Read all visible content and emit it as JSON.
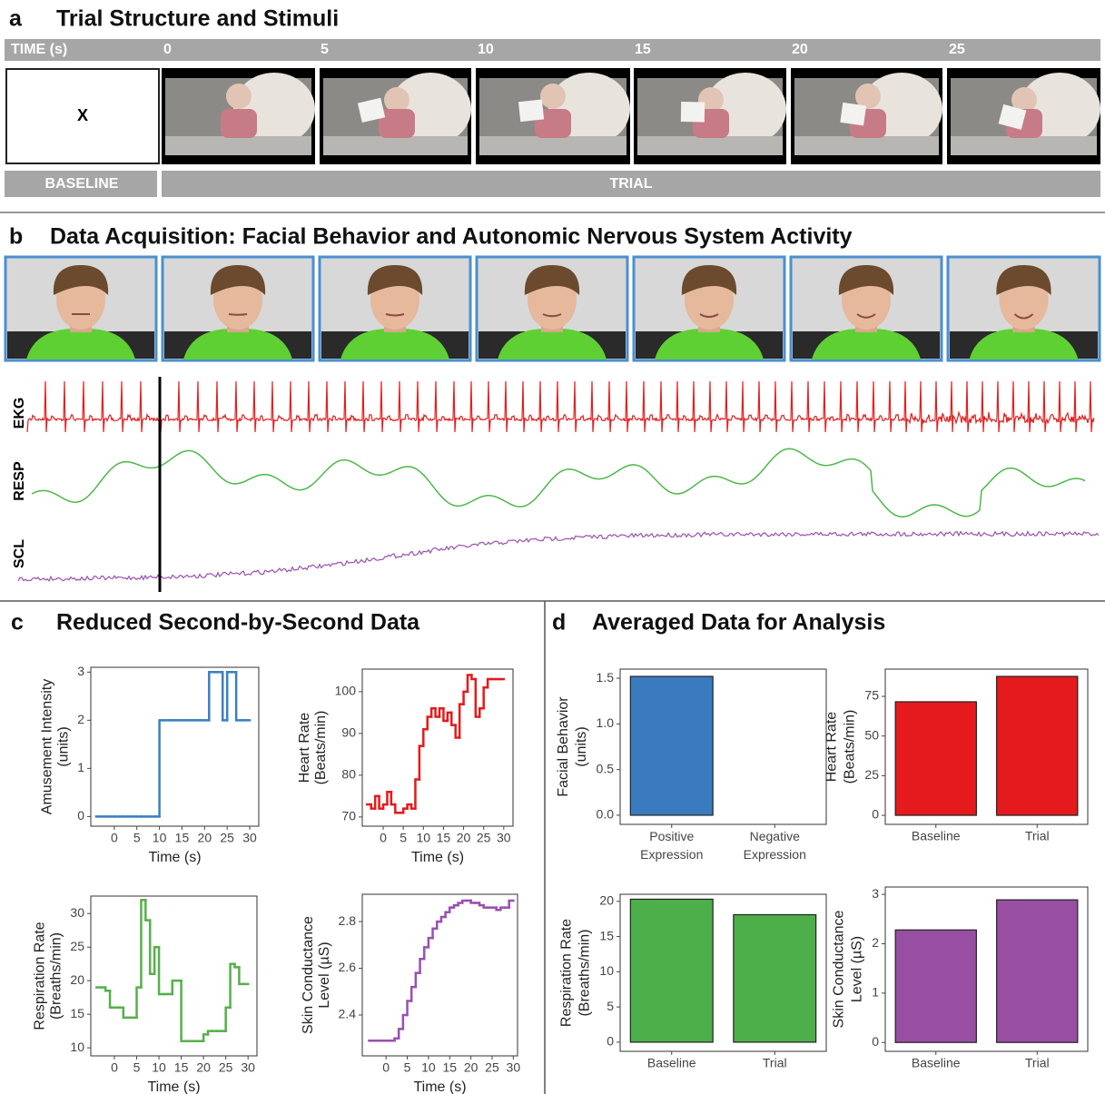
{
  "panel_a": {
    "label": "a",
    "title": "Trial Structure and Stimuli",
    "time_label": "TIME (s)",
    "time_ticks": [
      0,
      5,
      10,
      15,
      20,
      25
    ],
    "fixation": "X",
    "baseline": "BASELINE",
    "trial": "TRIAL"
  },
  "panel_b": {
    "label": "b",
    "title": "Data Acquisition: Facial Behavior and Autonomic Nervous System Activity",
    "signals": [
      "EKG",
      "RESP",
      "SCL"
    ]
  },
  "panel_c": {
    "label": "c",
    "title": "Reduced Second-by-Second Data"
  },
  "panel_d": {
    "label": "d",
    "title": "Averaged Data for Analysis"
  },
  "chart_data": [
    {
      "type": "line",
      "step": true,
      "color": "#3a7fc1",
      "ylabel": [
        "Amusement Intensity",
        "(units)"
      ],
      "xlabel": "Time (s)",
      "x": [
        -4,
        -3,
        -2,
        -1,
        0,
        1,
        2,
        3,
        4,
        5,
        6,
        7,
        8,
        9,
        10,
        11,
        12,
        13,
        14,
        15,
        16,
        17,
        18,
        19,
        20,
        21,
        22,
        23,
        24,
        25,
        26,
        27,
        28,
        29
      ],
      "values": [
        0,
        0,
        0,
        0,
        0,
        0,
        0,
        0,
        0,
        0,
        0,
        0,
        0,
        0,
        2,
        2,
        2,
        2,
        2,
        2,
        2,
        2,
        2,
        2,
        2,
        3,
        3,
        3,
        2,
        3,
        3,
        2,
        2,
        2
      ],
      "xlim": [
        -5.2,
        32
      ],
      "ylim": [
        -0.2,
        3.1
      ],
      "xticks": [
        0,
        5,
        10,
        15,
        20,
        25,
        30
      ],
      "yticks": [
        0,
        1,
        2,
        3
      ]
    },
    {
      "type": "line",
      "step": true,
      "color": "#e41a1c",
      "ylabel": [
        "Heart Rate",
        "(Beats/min)"
      ],
      "xlabel": "Time (s)",
      "x": [
        -4,
        -3,
        -2,
        -1,
        0,
        1,
        2,
        3,
        4,
        5,
        6,
        7,
        8,
        9,
        10,
        11,
        12,
        13,
        14,
        15,
        16,
        17,
        18,
        19,
        20,
        21,
        22,
        23,
        24,
        25,
        26,
        27,
        28,
        29
      ],
      "values": [
        73,
        72,
        75,
        72,
        73,
        76,
        73,
        71,
        71,
        72,
        73,
        72,
        79,
        87,
        91,
        94,
        96,
        94,
        96,
        93,
        95,
        92,
        89,
        97,
        100,
        104,
        103,
        94,
        96,
        101,
        103,
        103,
        103,
        103
      ],
      "xlim": [
        -5.2,
        32.3
      ],
      "ylim": [
        67.8,
        105.4
      ],
      "xticks": [
        0,
        5,
        10,
        15,
        20,
        25,
        30
      ],
      "yticks": [
        70,
        80,
        90,
        100
      ]
    },
    {
      "type": "line",
      "step": true,
      "color": "#55b04a",
      "ylabel": [
        "Respiration Rate",
        "(Breaths/min)"
      ],
      "xlabel": "Time (s)",
      "x": [
        -4,
        -3,
        -2,
        -1,
        0,
        1,
        2,
        3,
        4,
        5,
        6,
        7,
        8,
        9,
        10,
        11,
        12,
        13,
        14,
        15,
        16,
        17,
        18,
        19,
        20,
        21,
        22,
        23,
        24,
        25,
        26,
        27,
        28,
        29
      ],
      "values": [
        19,
        19,
        18.5,
        16,
        16,
        16,
        14.5,
        14.5,
        14.5,
        19,
        32,
        29,
        21,
        25,
        18,
        18,
        18,
        20,
        20,
        11,
        11,
        11,
        11,
        11,
        12,
        12.5,
        12.5,
        12.5,
        12.5,
        16,
        22.5,
        22,
        19.5,
        19.5
      ],
      "xlim": [
        -5.3,
        32
      ],
      "ylim": [
        8.8,
        32.6
      ],
      "xticks": [
        0,
        5,
        10,
        15,
        20,
        25,
        30
      ],
      "yticks": [
        10,
        15,
        20,
        25,
        30
      ]
    },
    {
      "type": "line",
      "step": true,
      "color": "#9a4fb0",
      "ylabel": [
        "Skin Conductance",
        "Level (µS)"
      ],
      "xlabel": "Time (s)",
      "x": [
        -4,
        -3,
        -2,
        -1,
        0,
        1,
        2,
        3,
        4,
        5,
        6,
        7,
        8,
        9,
        10,
        11,
        12,
        13,
        14,
        15,
        16,
        17,
        18,
        19,
        20,
        21,
        22,
        23,
        24,
        25,
        26,
        27,
        28,
        29
      ],
      "values": [
        2.29,
        2.29,
        2.29,
        2.29,
        2.29,
        2.29,
        2.3,
        2.34,
        2.4,
        2.46,
        2.52,
        2.58,
        2.64,
        2.69,
        2.73,
        2.77,
        2.8,
        2.82,
        2.84,
        2.86,
        2.87,
        2.88,
        2.89,
        2.89,
        2.88,
        2.88,
        2.87,
        2.86,
        2.86,
        2.86,
        2.85,
        2.86,
        2.86,
        2.89
      ],
      "xlim": [
        -5.6,
        31
      ],
      "ylim": [
        2.225,
        2.917
      ],
      "xticks": [
        0,
        5,
        10,
        15,
        20,
        25,
        30
      ],
      "yticks": [
        2.4,
        2.6,
        2.8
      ]
    },
    {
      "type": "bar",
      "color": "#3a7bbf",
      "ylabel": [
        "Facial Behavior",
        "(units)"
      ],
      "categories": [
        "Positive Expression",
        "Negative Expression"
      ],
      "values": [
        1.52,
        0
      ],
      "ylim": [
        -0.1,
        1.6
      ],
      "yticks": [
        {
          "value": 0,
          "label": "0.0"
        },
        0.5,
        {
          "value": 1,
          "label": "1.0"
        },
        1.5
      ]
    },
    {
      "type": "bar",
      "color": "#e41a1c",
      "ylabel": [
        "Heart Rate",
        "(Beats/min)"
      ],
      "categories": [
        "Baseline",
        "Trial"
      ],
      "values": [
        71.6,
        87.6
      ],
      "ylim": [
        -5.7,
        92.2
      ],
      "yticks": [
        0,
        25,
        50,
        75
      ]
    },
    {
      "type": "bar",
      "color": "#4daf4a",
      "ylabel": [
        "Respiration Rate",
        "(Breaths/min)"
      ],
      "categories": [
        "Baseline",
        "Trial"
      ],
      "values": [
        20.3,
        18.1
      ],
      "ylim": [
        -1.3,
        21
      ],
      "yticks": [
        0,
        5,
        10,
        15,
        20
      ]
    },
    {
      "type": "bar",
      "color": "#984ea3",
      "ylabel": [
        "Skin Conductance",
        "Level (µS)"
      ],
      "categories": [
        "Baseline",
        "Trial"
      ],
      "values": [
        2.28,
        2.89
      ],
      "ylim": [
        -0.18,
        3.15
      ],
      "yticks": [
        0,
        1,
        2,
        3
      ]
    }
  ]
}
